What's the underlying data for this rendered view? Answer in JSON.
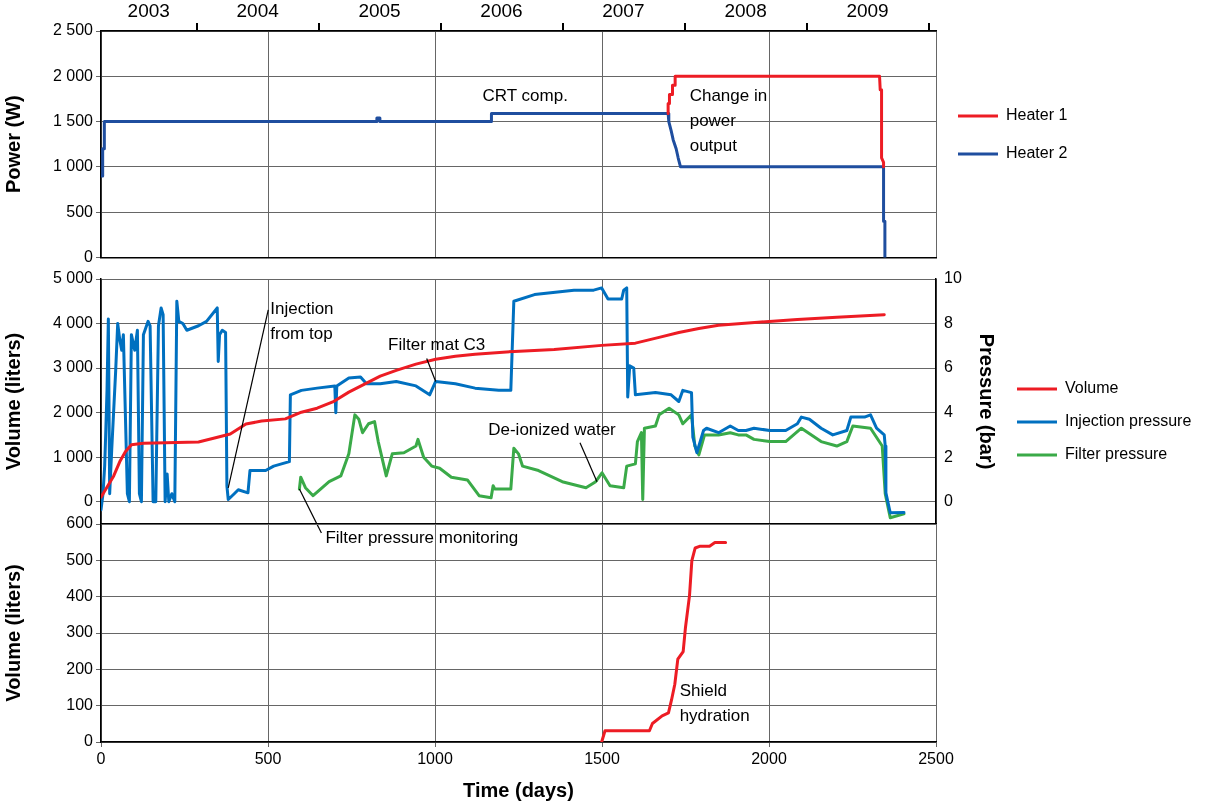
{
  "chart_data": [
    {
      "type": "line",
      "ylabel": "Power (W)",
      "xlim": [
        0,
        2500
      ],
      "xticks": [
        0,
        500,
        1000,
        1500,
        2000,
        2500
      ],
      "x2lim": [
        "2003-03-20",
        "2010-01-22"
      ],
      "x2ticks": [
        {
          "value": "2003-08-10",
          "label": "2003"
        },
        {
          "value": "2004-01-01",
          "label": null
        },
        {
          "value": "2004-07-01",
          "label": "2004"
        },
        {
          "value": "2005-01-01",
          "label": null
        },
        {
          "value": "2005-07-01",
          "label": "2005"
        },
        {
          "value": "2006-01-01",
          "label": null
        },
        {
          "value": "2006-07-01",
          "label": "2006"
        },
        {
          "value": "2007-01-01",
          "label": null
        },
        {
          "value": "2007-07-01",
          "label": "2007"
        },
        {
          "value": "2008-01-01",
          "label": null
        },
        {
          "value": "2008-07-01",
          "label": "2008"
        },
        {
          "value": "2009-01-01",
          "label": null
        },
        {
          "value": "2009-07-01",
          "label": "2009"
        },
        {
          "value": "2010-01-01",
          "label": null
        }
      ],
      "ylim": [
        0,
        2500
      ],
      "yticks": [
        0,
        500,
        {
          "value": 1000,
          "label": "1 000"
        },
        {
          "value": 1500,
          "label": "1 500"
        },
        {
          "value": 2000,
          "label": "2 000"
        },
        {
          "value": 2500,
          "label": "2 500"
        }
      ],
      "tick_labels": "y",
      "grid": true,
      "legend": "right",
      "series": [
        {
          "name": "Heater 1",
          "color": "#ed1c24",
          "x": [
            1698,
            1698,
            1702,
            1702,
            1711,
            1711,
            1719,
            1719,
            2331,
            2333,
            2337,
            2337,
            2343,
            2343
          ],
          "values": [
            1590,
            1700,
            1700,
            1800,
            1800,
            1900,
            1900,
            2000,
            2000,
            1850,
            1850,
            1100,
            1050,
            1000
          ]
        },
        {
          "name": "Heater 2",
          "color": "#1f4e9f",
          "x": [
            0,
            5,
            5,
            10,
            10,
            826,
            826,
            835,
            835,
            1169,
            1169,
            1698,
            1700,
            1707,
            1713,
            1722,
            1728,
            1735,
            2343,
            2343,
            2347,
            2347
          ],
          "values": [
            900,
            900,
            1200,
            1200,
            1500,
            1500,
            1540,
            1540,
            1500,
            1500,
            1590,
            1590,
            1500,
            1400,
            1300,
            1200,
            1100,
            1000,
            1000,
            400,
            400,
            0
          ]
        }
      ],
      "annotations": [
        "CRT comp.",
        "Change in power output"
      ]
    },
    {
      "type": "line",
      "ylabel": "Volume (liters)",
      "y2label": "Pressure (bar)",
      "xlim": [
        0,
        2500
      ],
      "xticks": [
        0,
        500,
        1000,
        1500,
        2000,
        2500
      ],
      "ylim": [
        -500,
        5000
      ],
      "yticks": [
        0,
        {
          "value": 1000,
          "label": "1 000"
        },
        {
          "value": 2000,
          "label": "2 000"
        },
        {
          "value": 3000,
          "label": "3 000"
        },
        {
          "value": 4000,
          "label": "4 000"
        },
        {
          "value": 5000,
          "label": "5 000"
        }
      ],
      "y2lim": [
        -1,
        10
      ],
      "y2ticks": [
        0,
        2,
        4,
        6,
        8,
        10
      ],
      "tick_labels": "y",
      "grid": true,
      "legend": "right",
      "series": [
        {
          "name": "Volume",
          "color": "#ed1c24",
          "x": [
            0,
            38,
            56,
            73,
            91,
            127,
            292,
            340,
            387,
            434,
            481,
            552,
            600,
            647,
            694,
            742,
            789,
            836,
            884,
            943,
            1002,
            1061,
            1120,
            1238,
            1357,
            1499,
            1600,
            1671,
            1730,
            1790,
            1849,
            1967,
            2085,
            2203,
            2345
          ],
          "values": [
            100,
            580,
            895,
            1120,
            1280,
            1315,
            1340,
            1430,
            1520,
            1745,
            1810,
            1860,
            2010,
            2100,
            2240,
            2460,
            2640,
            2820,
            2950,
            3090,
            3200,
            3265,
            3310,
            3375,
            3420,
            3510,
            3560,
            3690,
            3800,
            3890,
            3960,
            4030,
            4090,
            4140,
            4200
          ]
        },
        {
          "name": "Injection pressure",
          "color": "#0070c0",
          "axis": "y2",
          "x": [
            0,
            6,
            11,
            14,
            18,
            22,
            26,
            32,
            44,
            50,
            56,
            62,
            67,
            79,
            85,
            91,
            101,
            109,
            115,
            121,
            127,
            141,
            147,
            156,
            164,
            172,
            180,
            186,
            192,
            198,
            203,
            212,
            221,
            227,
            233,
            245,
            257,
            292,
            316,
            348,
            351,
            355,
            363,
            373,
            377,
            381,
            399,
            411,
            440,
            446,
            493,
            517,
            564,
            567,
            600,
            647,
            700,
            703,
            706,
            742,
            777,
            795,
            836,
            884,
            943,
            984,
            1002,
            1061,
            1120,
            1191,
            1227,
            1236,
            1298,
            1416,
            1475,
            1499,
            1518,
            1559,
            1565,
            1574,
            1577,
            1583,
            1595,
            1600,
            1660,
            1707,
            1730,
            1742,
            1768,
            1772,
            1784,
            1804,
            1813,
            1849,
            1884,
            1908,
            1931,
            1955,
            2002,
            2050,
            2085,
            2097,
            2121,
            2156,
            2191,
            2233,
            2245,
            2286,
            2304,
            2322,
            2345,
            2348,
            2350,
            2363,
            2404
          ],
          "values": [
            -0.36,
            0.36,
            1.6,
            3.0,
            5.0,
            8.2,
            0.36,
            2.3,
            5.9,
            8.0,
            7.3,
            6.8,
            7.5,
            0.36,
            0,
            7.5,
            6.8,
            7.7,
            0.36,
            0,
            7.5,
            8.1,
            7.9,
            0,
            0,
            7.9,
            8.7,
            8.4,
            0,
            1.25,
            0,
            0.36,
            0,
            9.0,
            8.1,
            8.0,
            7.7,
            7.9,
            8.1,
            8.7,
            6.3,
            7.5,
            7.7,
            7.6,
            0.7,
            0.1,
            0.36,
            0.54,
            0.4,
            1.4,
            1.4,
            1.6,
            1.8,
            4.8,
            5.0,
            5.1,
            5.2,
            4.0,
            5.2,
            5.55,
            5.6,
            5.3,
            5.3,
            5.4,
            5.2,
            4.8,
            5.4,
            5.3,
            5.1,
            5.0,
            5.0,
            9.0,
            9.3,
            9.5,
            9.5,
            9.6,
            9.1,
            9.1,
            9.5,
            9.6,
            4.7,
            6.1,
            6.0,
            4.8,
            4.9,
            4.8,
            4.5,
            5.0,
            4.9,
            2.9,
            2.2,
            3.2,
            3.3,
            3.1,
            3.4,
            3.2,
            3.2,
            3.3,
            3.2,
            3.2,
            3.5,
            3.8,
            3.7,
            3.3,
            3.0,
            3.2,
            3.8,
            3.8,
            3.9,
            3.3,
            3.0,
            2.5,
            0.4,
            -0.5,
            -0.48
          ]
        },
        {
          "name": "Filter pressure",
          "color": "#3aaa48",
          "axis": "y2",
          "x": [
            594,
            598,
            612,
            635,
            683,
            718,
            742,
            760,
            772,
            783,
            801,
            819,
            830,
            854,
            872,
            907,
            943,
            949,
            966,
            990,
            1014,
            1049,
            1097,
            1132,
            1168,
            1174,
            1179,
            1227,
            1236,
            1250,
            1262,
            1310,
            1381,
            1452,
            1481,
            1500,
            1524,
            1565,
            1574,
            1600,
            1606,
            1618,
            1622,
            1627,
            1660,
            1671,
            1701,
            1730,
            1742,
            1768,
            1778,
            1790,
            1807,
            1849,
            1884,
            1908,
            1931,
            1955,
            2002,
            2050,
            2097,
            2156,
            2203,
            2233,
            2251,
            2304,
            2339,
            2348,
            2363,
            2404
          ],
          "values": [
            0.57,
            1.1,
            0.63,
            0.27,
            0.9,
            1.16,
            2.15,
            3.9,
            3.7,
            3.1,
            3.5,
            3.6,
            2.7,
            1.16,
            2.15,
            2.2,
            2.5,
            2.8,
            2.0,
            1.6,
            1.5,
            1.1,
            0.98,
            0.27,
            0.18,
            0.72,
            0.57,
            0.57,
            2.4,
            2.15,
            1.6,
            1.4,
            0.9,
            0.63,
            0.9,
            1.3,
            0.72,
            0.63,
            1.6,
            1.7,
            2.7,
            3.1,
            0.1,
            3.3,
            3.4,
            3.9,
            4.2,
            3.9,
            3.5,
            3.9,
            2.5,
            2.1,
            3.0,
            3.0,
            3.1,
            3.0,
            3.0,
            2.8,
            2.7,
            2.7,
            3.3,
            2.7,
            2.5,
            2.7,
            3.4,
            3.3,
            2.5,
            0.36,
            -0.72,
            -0.54
          ]
        }
      ],
      "annotations": [
        {
          "text": "Injection from top",
          "x": 381,
          "y": 313
        },
        {
          "text": "Filter mat C3",
          "x": 1002,
          "y": 2700
        },
        {
          "text": "De-ionized water",
          "x": 1485,
          "y": 448
        },
        {
          "text": "Filter pressure monitoring",
          "x": 594,
          "y": 285
        }
      ]
    },
    {
      "type": "line",
      "xlabel": "Time (days)",
      "ylabel": "Volume (liters)",
      "xlim": [
        0,
        2500
      ],
      "xticks": [
        0,
        500,
        1000,
        1500,
        2000,
        2500
      ],
      "ylim": [
        0,
        600
      ],
      "yticks": [
        0,
        100,
        200,
        300,
        400,
        500,
        600
      ],
      "grid": true,
      "series": [
        {
          "color": "#ed1c24",
          "x": [
            1499,
            1509,
            1642,
            1651,
            1680,
            1699,
            1708,
            1718,
            1727,
            1743,
            1750,
            1762,
            1769,
            1779,
            1794,
            1822,
            1838,
            1870
          ],
          "values": [
            0,
            31,
            31,
            51,
            72,
            80,
            115,
            159,
            228,
            249,
            316,
            403,
            499,
            534,
            539,
            539,
            549,
            549
          ]
        }
      ],
      "annotations": [
        "Shield hydration"
      ]
    }
  ]
}
